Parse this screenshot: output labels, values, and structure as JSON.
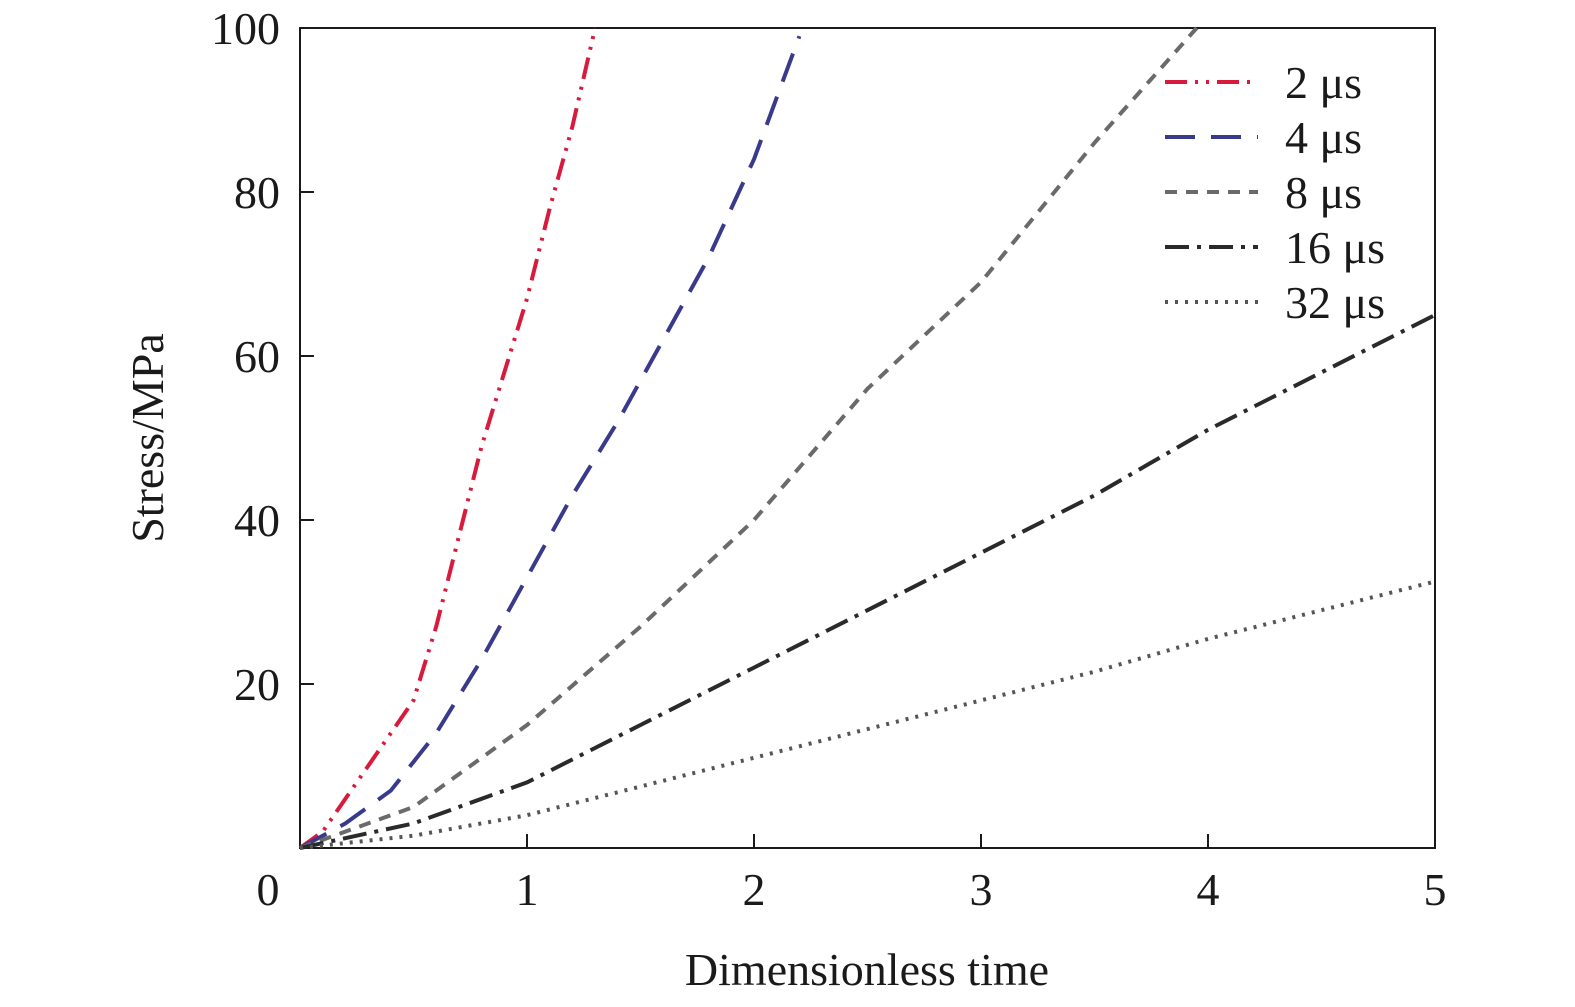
{
  "chart_data": {
    "type": "line",
    "xlabel": "Dimensionless time",
    "ylabel": "Stress/MPa",
    "xlim": [
      0,
      5
    ],
    "ylim": [
      0,
      100
    ],
    "x_ticks": [
      "0",
      "1",
      "2",
      "3",
      "4",
      "5"
    ],
    "y_ticks": [
      "20",
      "40",
      "60",
      "80",
      "100"
    ],
    "grid": false,
    "legend_position": "top-right",
    "series": [
      {
        "name": "2 μs",
        "color": "#d81b3c",
        "dash": "dash-dot-dot",
        "points": [
          [
            0,
            0
          ],
          [
            0.1,
            2
          ],
          [
            0.3,
            10
          ],
          [
            0.5,
            18
          ],
          [
            0.6,
            27
          ],
          [
            0.7,
            38
          ],
          [
            0.8,
            49
          ],
          [
            0.9,
            58
          ],
          [
            1.0,
            67
          ],
          [
            1.1,
            78
          ],
          [
            1.2,
            88
          ],
          [
            1.3,
            100
          ]
        ]
      },
      {
        "name": "4 μs",
        "color": "#3a3a8c",
        "dash": "long-dash",
        "points": [
          [
            0,
            0
          ],
          [
            0.2,
            3
          ],
          [
            0.4,
            7
          ],
          [
            0.6,
            14
          ],
          [
            0.8,
            23
          ],
          [
            1.0,
            33
          ],
          [
            1.2,
            43
          ],
          [
            1.4,
            52
          ],
          [
            1.6,
            62
          ],
          [
            1.8,
            72
          ],
          [
            2.0,
            84
          ],
          [
            2.2,
            99
          ]
        ]
      },
      {
        "name": "8 μs",
        "color": "#6a6a6a",
        "dash": "short-dash",
        "points": [
          [
            0,
            0
          ],
          [
            0.5,
            5
          ],
          [
            1.0,
            15
          ],
          [
            1.5,
            27
          ],
          [
            2.0,
            40
          ],
          [
            2.5,
            56
          ],
          [
            3.0,
            69
          ],
          [
            3.5,
            86
          ],
          [
            3.95,
            100
          ]
        ]
      },
      {
        "name": "16 μs",
        "color": "#2a2a2a",
        "dash": "dash-dot",
        "points": [
          [
            0,
            0
          ],
          [
            0.5,
            3
          ],
          [
            1.0,
            8
          ],
          [
            1.5,
            15
          ],
          [
            2.0,
            22
          ],
          [
            2.5,
            29
          ],
          [
            3.0,
            36
          ],
          [
            3.5,
            43
          ],
          [
            4.0,
            51
          ],
          [
            4.5,
            58
          ],
          [
            5.0,
            65
          ]
        ]
      },
      {
        "name": "32 μs",
        "color": "#555555",
        "dash": "dotted",
        "points": [
          [
            0,
            0
          ],
          [
            0.5,
            1.5
          ],
          [
            1.0,
            4
          ],
          [
            1.5,
            7.5
          ],
          [
            2.0,
            11
          ],
          [
            2.5,
            14.5
          ],
          [
            3.0,
            18
          ],
          [
            3.5,
            21.5
          ],
          [
            4.0,
            25.5
          ],
          [
            4.5,
            29
          ],
          [
            5.0,
            32.5
          ]
        ]
      }
    ]
  }
}
